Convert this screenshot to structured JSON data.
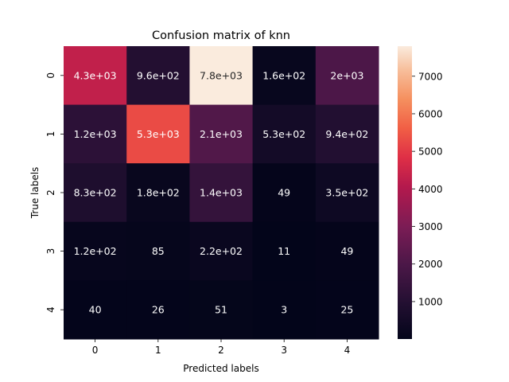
{
  "chart_data": {
    "type": "heatmap",
    "title": "Confusion matrix of knn",
    "xlabel": "Predicted labels",
    "ylabel": "True labels",
    "x_ticks": [
      "0",
      "1",
      "2",
      "3",
      "4"
    ],
    "y_ticks": [
      "0",
      "1",
      "2",
      "3",
      "4"
    ],
    "values": [
      [
        4300,
        960,
        7800,
        160,
        2000
      ],
      [
        1200,
        5300,
        2100,
        530,
        940
      ],
      [
        830,
        180,
        1400,
        49,
        350
      ],
      [
        120,
        85,
        220,
        11,
        49
      ],
      [
        40,
        26,
        51,
        3,
        25
      ]
    ],
    "annotations": [
      [
        "4.3e+03",
        "9.6e+02",
        "7.8e+03",
        "1.6e+02",
        "2e+03"
      ],
      [
        "1.2e+03",
        "5.3e+03",
        "2.1e+03",
        "5.3e+02",
        "9.4e+02"
      ],
      [
        "8.3e+02",
        "1.8e+02",
        "1.4e+03",
        "49",
        "3.5e+02"
      ],
      [
        "1.2e+02",
        "85",
        "2.2e+02",
        "11",
        "49"
      ],
      [
        "40",
        "26",
        "51",
        "3",
        "25"
      ]
    ],
    "colorbar": {
      "min": 3,
      "max": 7800,
      "ticks": [
        1000,
        2000,
        3000,
        4000,
        5000,
        6000,
        7000
      ],
      "colormap": "rocket"
    }
  }
}
